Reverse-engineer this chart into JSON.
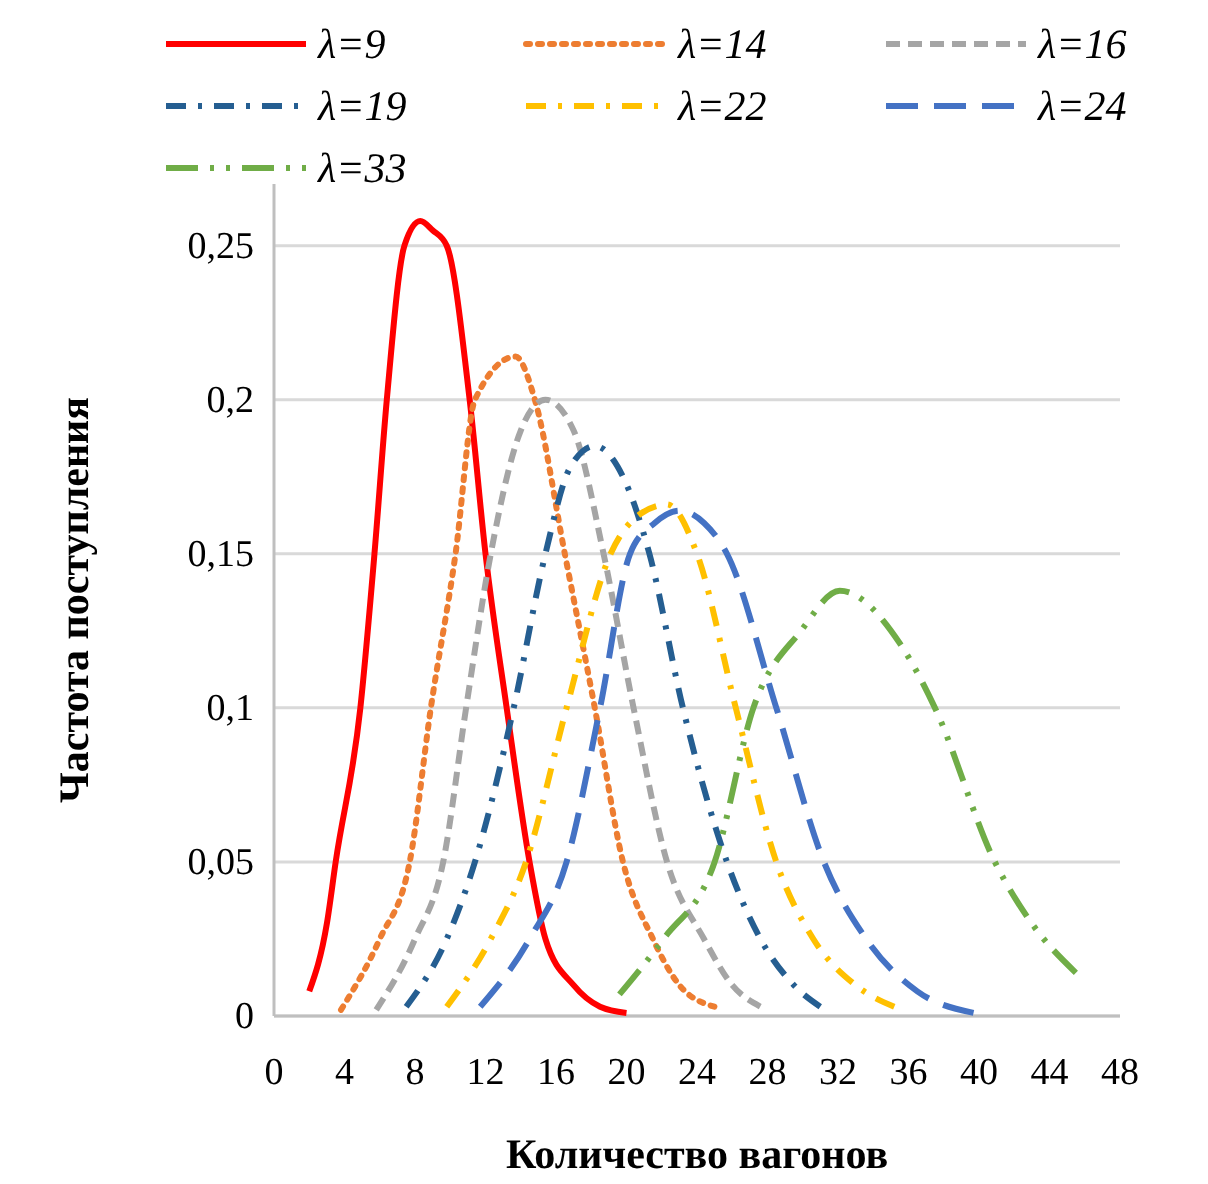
{
  "chart_data": {
    "type": "line",
    "xlabel": "Количество вагонов",
    "ylabel": "Частота поступления",
    "xlim": [
      0,
      48
    ],
    "xticks": [
      0,
      4,
      8,
      12,
      16,
      20,
      24,
      28,
      32,
      36,
      40,
      44,
      48
    ],
    "ylim": [
      0,
      0.27
    ],
    "yticks": [
      0,
      {
        "value": 0.05,
        "label": "0,05"
      },
      {
        "value": 0.1,
        "label": "0,1"
      },
      {
        "value": 0.15,
        "label": "0,15"
      },
      {
        "value": 0.2,
        "label": "0,2"
      },
      {
        "value": 0.25,
        "label": "0,25"
      }
    ],
    "grid": "y",
    "legend": "top",
    "series": [
      {
        "name": "λ=9",
        "color": "#ff0000",
        "line_style": "solid",
        "x": [
          2,
          3,
          3.5,
          4.9,
          5.7,
          6.4,
          7.4,
          8.3,
          9,
          9.8,
          11.1,
          12,
          13.2,
          14.5,
          15.4,
          17,
          18.5,
          20
        ],
        "values": [
          0.008,
          0.03,
          0.05,
          0.1,
          0.15,
          0.2,
          0.25,
          0.258,
          0.255,
          0.25,
          0.2,
          0.15,
          0.1,
          0.05,
          0.025,
          0.01,
          0.003,
          0.001
        ]
      },
      {
        "name": "λ=14",
        "color": "#ed7d31",
        "line_style": "dotted",
        "x": [
          3.8,
          6,
          7.7,
          8.9,
          10.3,
          11.4,
          13.7,
          14.8,
          16.5,
          18.2,
          19.8,
          21.5,
          23,
          25
        ],
        "values": [
          0.002,
          0.025,
          0.05,
          0.1,
          0.15,
          0.2,
          0.214,
          0.2,
          0.15,
          0.1,
          0.05,
          0.025,
          0.01,
          0.003
        ]
      },
      {
        "name": "λ=16",
        "color": "#a5a5a5",
        "line_style": "dashed",
        "x": [
          5.8,
          8,
          9.6,
          10.9,
          12.3,
          14,
          15.4,
          17,
          18.7,
          20.4,
          22.3,
          24.4,
          26,
          27.6
        ],
        "values": [
          0.002,
          0.025,
          0.05,
          0.1,
          0.15,
          0.19,
          0.2,
          0.19,
          0.15,
          0.1,
          0.05,
          0.025,
          0.01,
          0.003
        ]
      },
      {
        "name": "λ=19",
        "color": "#255e91",
        "line_style": "dashdot",
        "x": [
          7.5,
          9.8,
          11.4,
          13.6,
          15.4,
          16.8,
          18.2,
          19.8,
          21.3,
          23.2,
          25.7,
          27.6,
          29.5,
          31
        ],
        "values": [
          0.003,
          0.025,
          0.05,
          0.1,
          0.15,
          0.178,
          0.185,
          0.175,
          0.15,
          0.1,
          0.05,
          0.025,
          0.01,
          0.003
        ]
      },
      {
        "name": "λ=22",
        "color": "#ffc000",
        "line_style": "dashdot",
        "x": [
          9.8,
          12.3,
          14.3,
          16.6,
          19.1,
          20.8,
          22.3,
          24,
          26.2,
          28.5,
          30.6,
          33,
          35.2
        ],
        "values": [
          0.003,
          0.025,
          0.05,
          0.1,
          0.15,
          0.163,
          0.166,
          0.15,
          0.1,
          0.05,
          0.025,
          0.01,
          0.003
        ]
      },
      {
        "name": "λ=24",
        "color": "#4472c4",
        "line_style": "longdash",
        "x": [
          11.7,
          14.5,
          16.6,
          18.5,
          20.2,
          21.6,
          23,
          24.4,
          25.7,
          28.5,
          31.2,
          33.6,
          36.5,
          39.7
        ],
        "values": [
          0.003,
          0.025,
          0.05,
          0.1,
          0.15,
          0.16,
          0.164,
          0.16,
          0.15,
          0.1,
          0.05,
          0.025,
          0.008,
          0.001
        ]
      },
      {
        "name": "λ=33",
        "color": "#70ad47",
        "line_style": "longdashdotdot",
        "x": [
          19.6,
          22.1,
          25,
          27.2,
          29.9,
          32.1,
          35.5,
          37.5,
          40.9,
          43,
          45.5
        ],
        "values": [
          0.007,
          0.025,
          0.05,
          0.1,
          0.125,
          0.138,
          0.121,
          0.1,
          0.05,
          0.03,
          0.014
        ]
      }
    ]
  }
}
